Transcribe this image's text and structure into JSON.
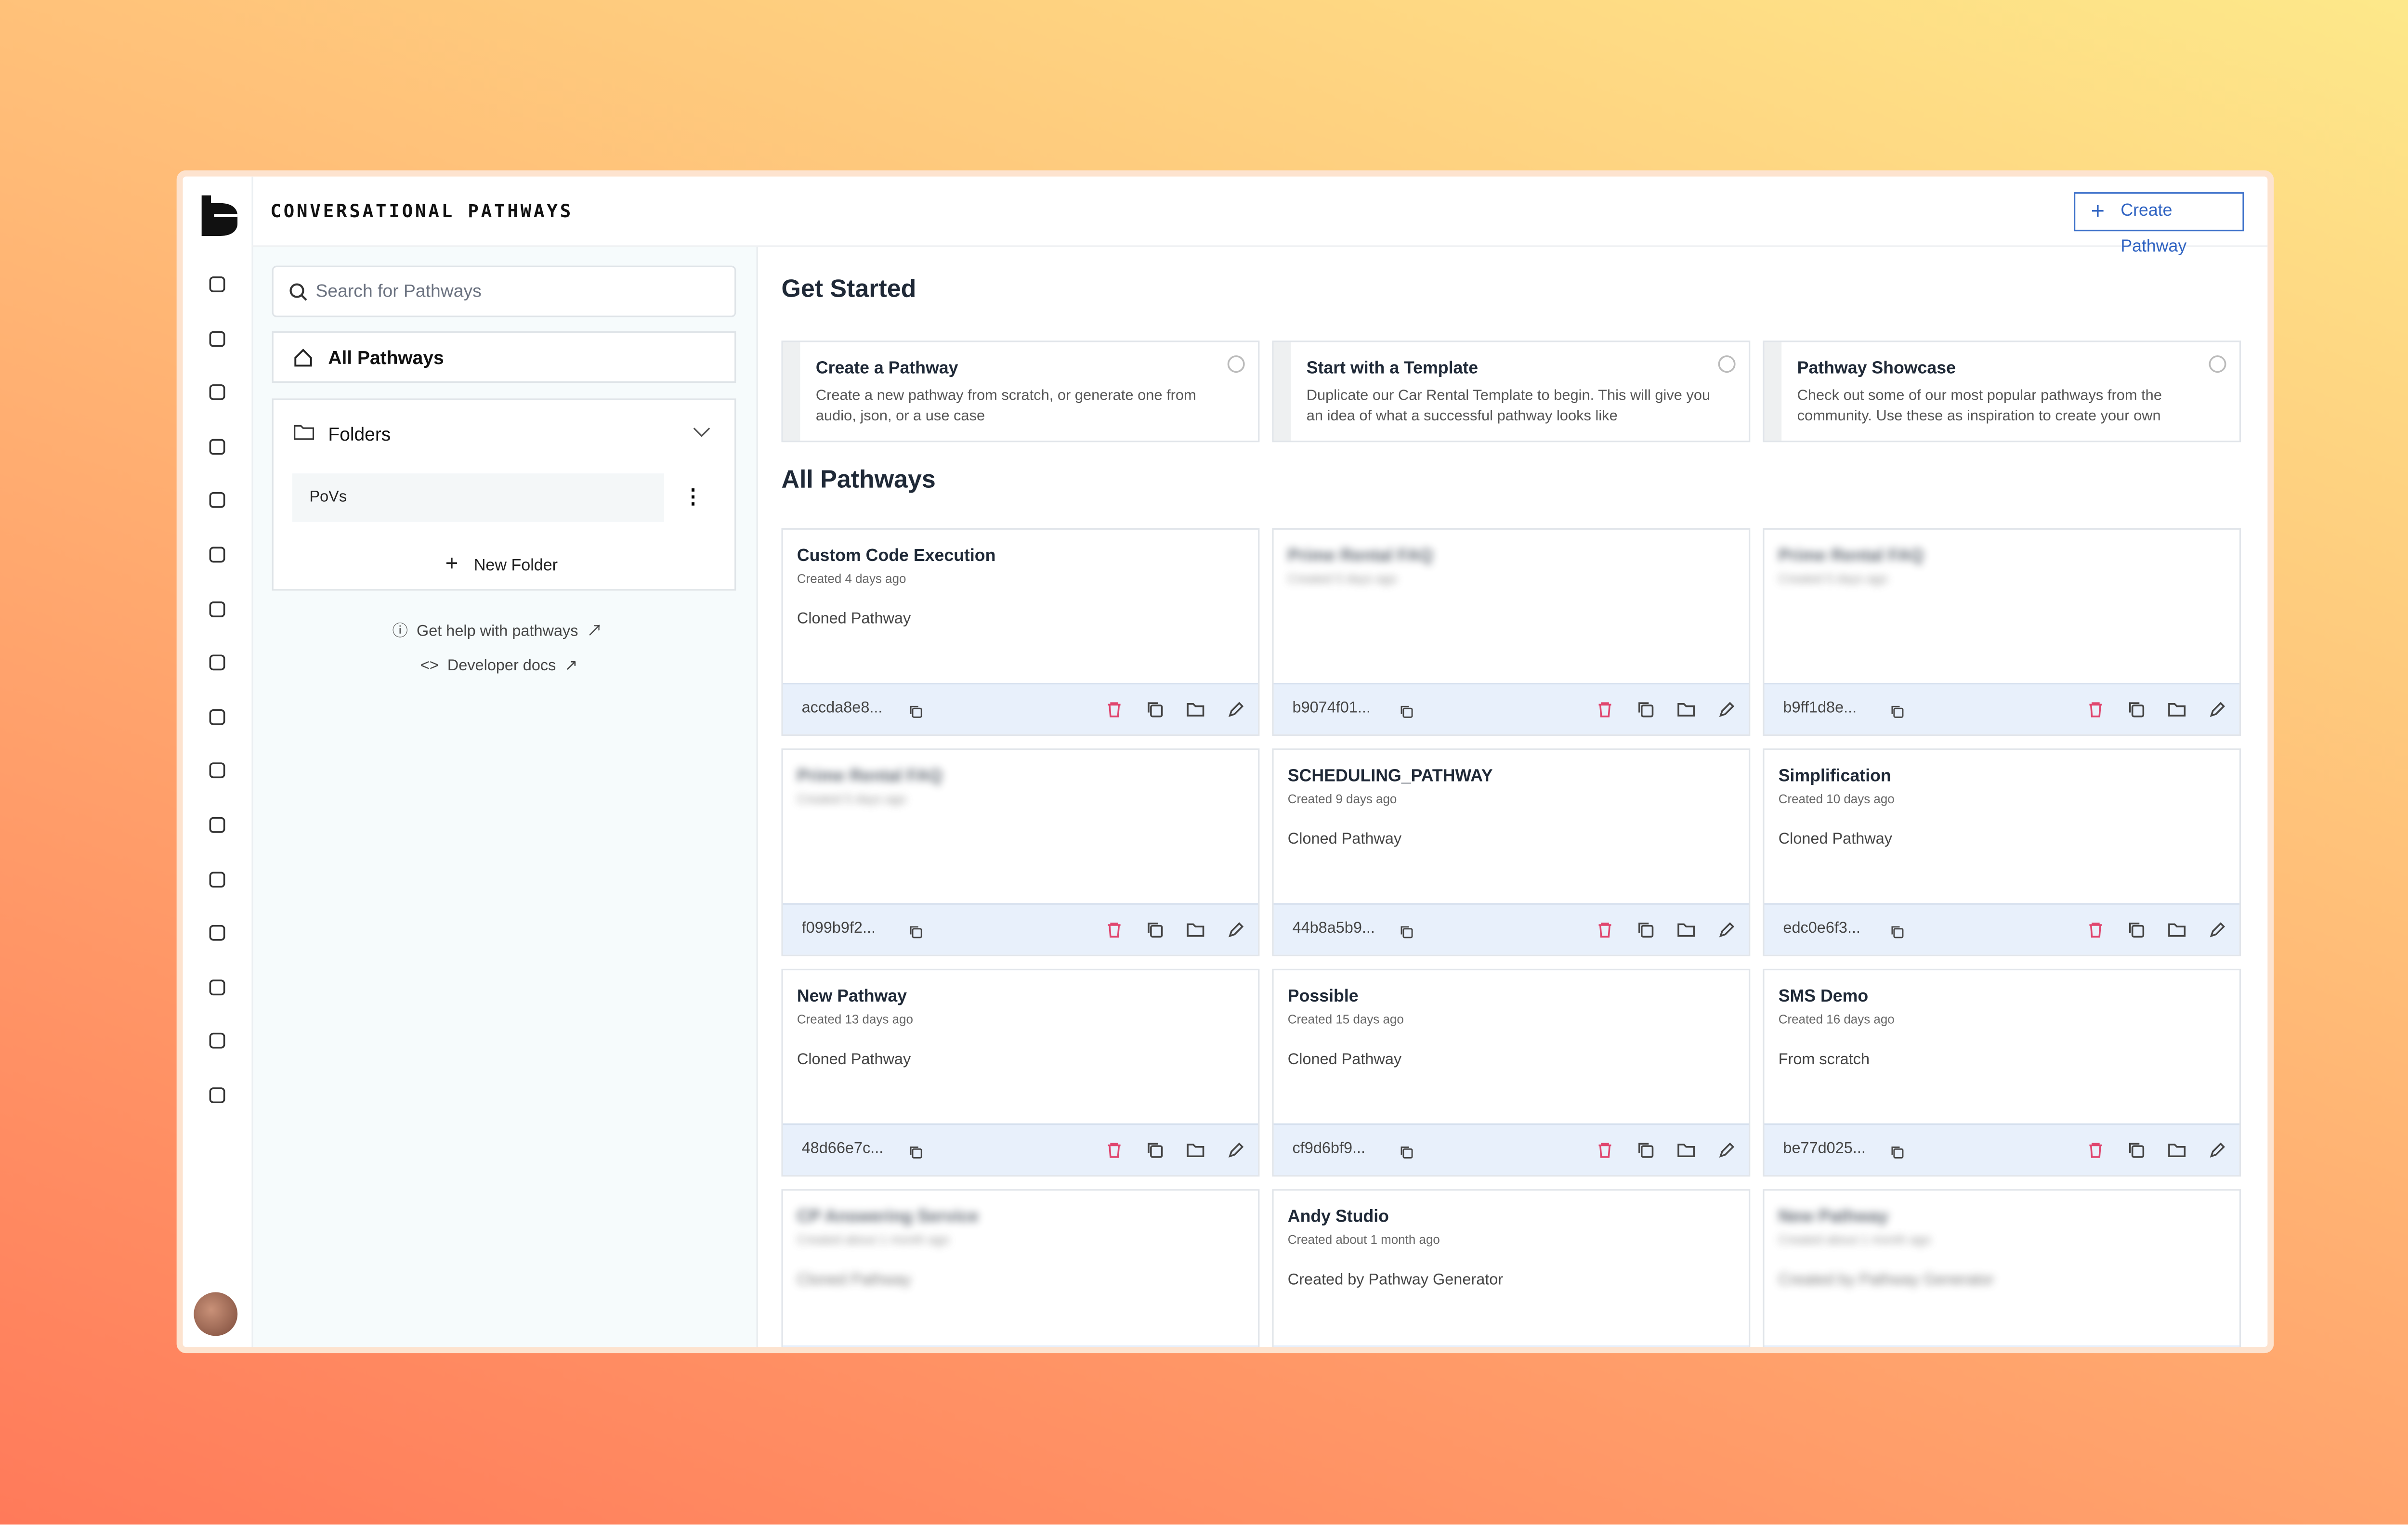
{
  "header": {
    "title": "CONVERSATIONAL PATHWAYS",
    "button": "Create Pathway"
  },
  "sidebar": {
    "search_placeholder": "Search for Pathways",
    "all_pathways": "All Pathways",
    "folders_label": "Folders",
    "folders": [
      "PoVs"
    ],
    "new_folder": "New Folder",
    "help_link": "Get help with pathways",
    "docs_link": "Developer docs"
  },
  "get_started": {
    "title": "Get Started",
    "cards": [
      {
        "title": "Create a Pathway",
        "description": "Create a new pathway from scratch, or generate one from audio, json, or a use case"
      },
      {
        "title": "Start with a Template",
        "description": "Duplicate our Car Rental Template to begin. This will give you an idea of what a successful pathway looks like"
      },
      {
        "title": "Pathway Showcase",
        "description": "Check out some of our most popular pathways from the community. Use these as inspiration to create your own"
      }
    ]
  },
  "all_pathways": {
    "title": "All Pathways",
    "cards": [
      {
        "name": "Custom Code Execution",
        "created": "Created 4 days ago",
        "description": "Cloned Pathway",
        "id": "accda8e8..."
      },
      {
        "name": "Prime Rental FAQ",
        "created": "Created 5 days ago",
        "id": "b9074f01...",
        "blurred": true
      },
      {
        "name": "Prime Rental FAQ",
        "created": "Created 5 days ago",
        "id": "b9ff1d8e...",
        "blurred": true
      },
      {
        "name": "Prime Rental FAQ",
        "created": "Created 5 days ago",
        "id": "f099b9f2...",
        "blurred": true
      },
      {
        "name": "SCHEDULING_PATHWAY",
        "created": "Created 9 days ago",
        "description": "Cloned Pathway",
        "id": "44b8a5b9..."
      },
      {
        "name": "Simplification",
        "created": "Created 10 days ago",
        "description": "Cloned Pathway",
        "id": "edc0e6f3..."
      },
      {
        "name": "New Pathway",
        "created": "Created 13 days ago",
        "description": "Cloned Pathway",
        "id": "48d66e7c..."
      },
      {
        "name": "Possible",
        "created": "Created 15 days ago",
        "description": "Cloned Pathway",
        "id": "cf9d6bf9..."
      },
      {
        "name": "SMS Demo",
        "created": "Created 16 days ago",
        "description": "From scratch",
        "id": "be77d025..."
      },
      {
        "name": "CP Answering Service",
        "created": "Created about 1 month ago",
        "description": "Cloned Pathway",
        "blurred": true
      },
      {
        "name": "Andy Studio",
        "created": "Created about 1 month ago",
        "description": "Created by Pathway Generator"
      },
      {
        "name": "New Pathway",
        "created": "Created about 1 month ago",
        "description": "Created by Pathway Generator",
        "blurred": true
      }
    ]
  }
}
